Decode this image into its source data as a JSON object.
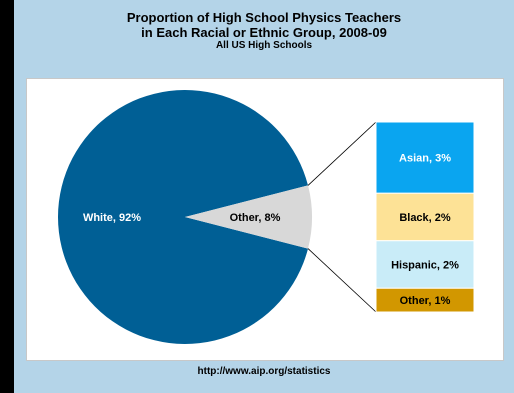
{
  "page": {
    "footer": "http://www.aip.org/statistics"
  },
  "chart_data": {
    "type": "pie",
    "title": "Proportion of High School Physics Teachers",
    "title_line2": "in Each Racial or Ethnic Group, 2008-09",
    "subtitle": "All US High Schools",
    "slices": [
      {
        "label": "White, 92%",
        "value": 92,
        "color": "#005f95"
      },
      {
        "label": "Other, 8%",
        "value": 8,
        "color": "#d8d8d8"
      }
    ],
    "breakdown": {
      "of": "Other, 8%",
      "segments": [
        {
          "label": "Asian, 3%",
          "value": 3,
          "color": "#0aa5f0",
          "text_color": "#ffffff"
        },
        {
          "label": "Black, 2%",
          "value": 2,
          "color": "#fde296",
          "text_color": "#000000"
        },
        {
          "label": "Hispanic, 2%",
          "value": 2,
          "color": "#c9ecf8",
          "text_color": "#000000"
        },
        {
          "label": "Other, 1%",
          "value": 1,
          "color": "#d29700",
          "text_color": "#000000"
        }
      ]
    }
  }
}
